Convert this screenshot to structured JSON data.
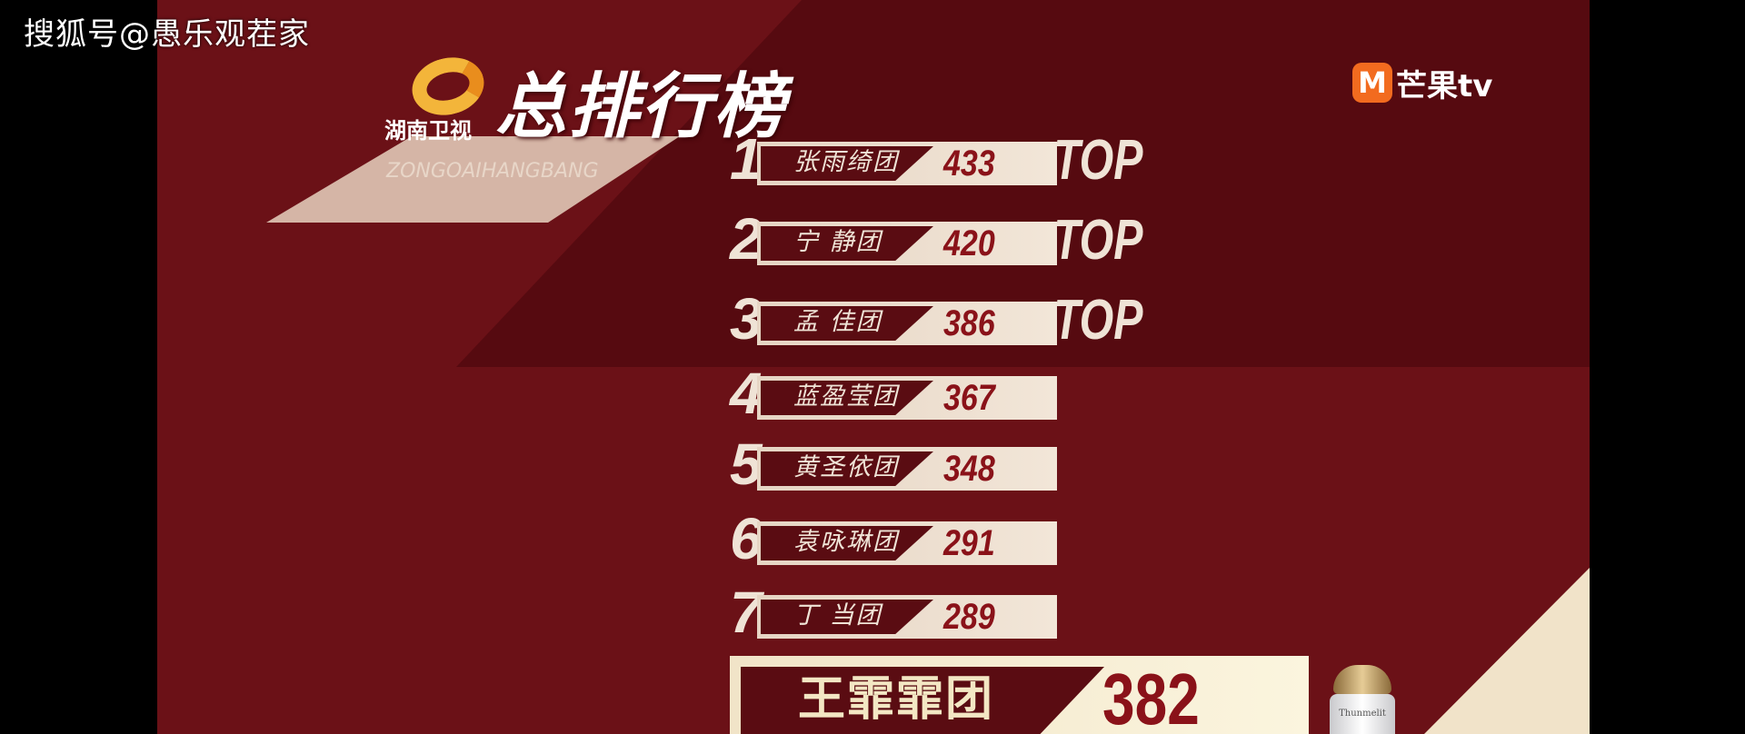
{
  "watermark": "搜狐号@愚乐观茬家",
  "show": {
    "title": "总排行榜",
    "channel": "湖南卫视",
    "title_pinyin": "ZONGOAIHANGBANG"
  },
  "broadcaster": {
    "logo_letter": "M",
    "name": "芒果tv",
    "brand_color": "#f26b1f"
  },
  "rankings": [
    {
      "rank": "1",
      "name": "张雨绮团",
      "score": "433",
      "badge": "TOP"
    },
    {
      "rank": "2",
      "name": "宁 静团",
      "score": "420",
      "badge": "TOP"
    },
    {
      "rank": "3",
      "name": "孟 佳团",
      "score": "386",
      "badge": "TOP"
    },
    {
      "rank": "4",
      "name": "蓝盈莹团",
      "score": "367"
    },
    {
      "rank": "5",
      "name": "黄圣依团",
      "score": "348"
    },
    {
      "rank": "6",
      "name": "袁咏琳团",
      "score": "291"
    },
    {
      "rank": "7",
      "name": "丁 当团",
      "score": "289"
    }
  ],
  "highlight": {
    "name": "王霏霏团",
    "score": "382"
  },
  "product": {
    "label": "Thunmelit"
  },
  "colors": {
    "background": "#6b1117",
    "dark": "#5a0c12",
    "cream": "#f2e6d8",
    "score_red": "#8a1219"
  }
}
